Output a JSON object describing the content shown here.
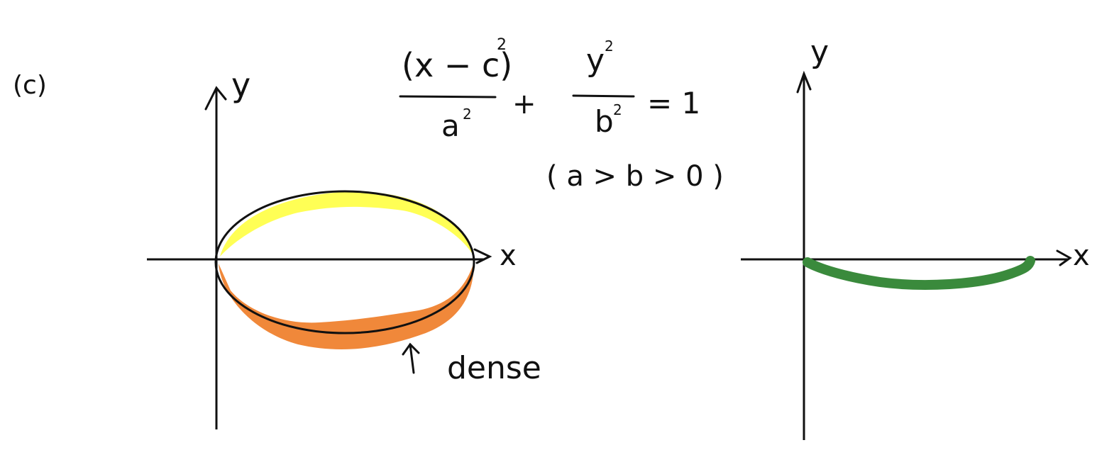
{
  "part_label": "(c)",
  "equation": {
    "numerator_left": "(x − c)",
    "exp_left": "2",
    "denominator_left": "a",
    "exp_denominator_left": "2",
    "plus": "+",
    "numerator_right": "y",
    "exp_right": "2",
    "denominator_right": "b",
    "exp_denominator_right": "2",
    "equals": "= 1",
    "condition": "( a > b > 0 )"
  },
  "left_plot": {
    "x_label": "x",
    "y_label": "y",
    "annotation": "dense",
    "upper_half_color": "#FFFF55",
    "lower_half_color": "#F0883A"
  },
  "right_plot": {
    "x_label": "x",
    "y_label": "y",
    "curve_color": "#3A8A3C"
  }
}
